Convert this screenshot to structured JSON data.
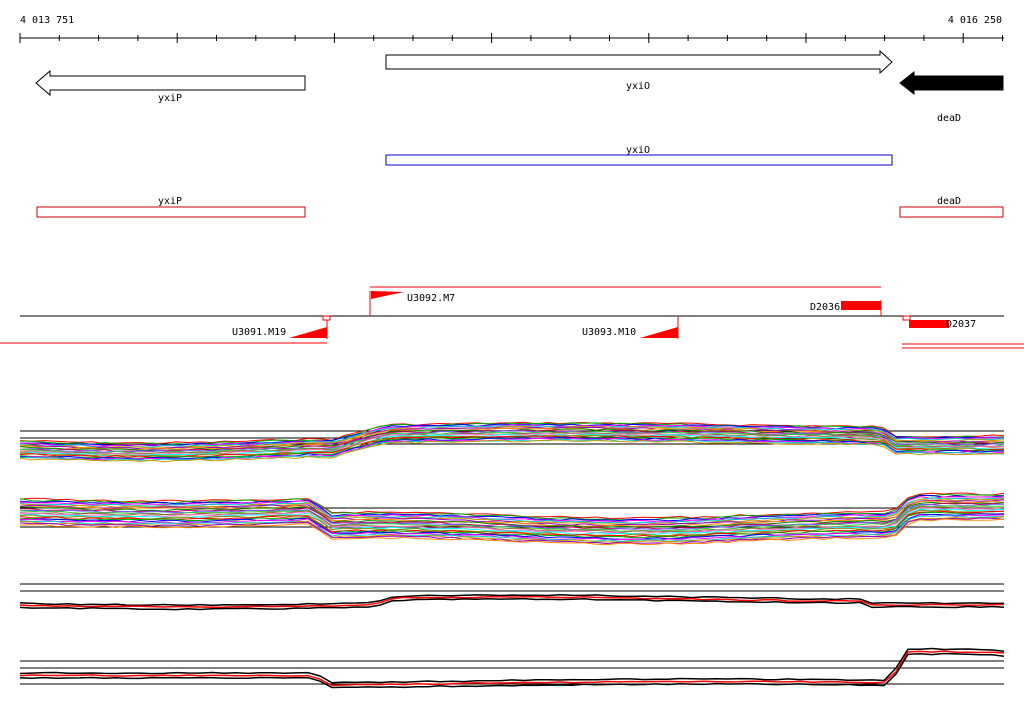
{
  "ruler": {
    "start_label": "4 013 751",
    "end_label": "4 016 250",
    "start_bp": 4013751,
    "end_bp": 4016250
  },
  "genes_track": [
    {
      "name": "yxiP",
      "strand": "-",
      "start_bp": 4013794,
      "end_bp": 4014476,
      "filled": false,
      "label": "yxiP"
    },
    {
      "name": "yxiO",
      "strand": "+",
      "start_bp": 4014681,
      "end_bp": 4015970,
      "filled": false,
      "label": "yxiO"
    },
    {
      "name": "deaD",
      "strand": "-",
      "start_bp": 4015990,
      "end_bp": 4016250,
      "filled": true,
      "label": "deaD"
    }
  ],
  "blue_box": {
    "label": "yxiO",
    "start_bp": 4014681,
    "end_bp": 4015970,
    "color": "#0000cc"
  },
  "red_boxes": [
    {
      "label": "yxiP",
      "start_bp": 4013794,
      "end_bp": 4014476,
      "color": "#cc0000"
    },
    {
      "label": "deaD",
      "start_bp": 4015990,
      "end_bp": 4016250,
      "color": "#cc0000"
    }
  ],
  "features": {
    "upper": [
      {
        "label": "U3092.M7"
      },
      {
        "label": "D2036"
      }
    ],
    "lower": [
      {
        "label": "U3091.M19"
      },
      {
        "label": "U3093.M10"
      },
      {
        "label": "D2037"
      }
    ]
  },
  "colors": {
    "accent_red": "#ff0000",
    "black": "#000000",
    "blue": "#0000cc"
  }
}
